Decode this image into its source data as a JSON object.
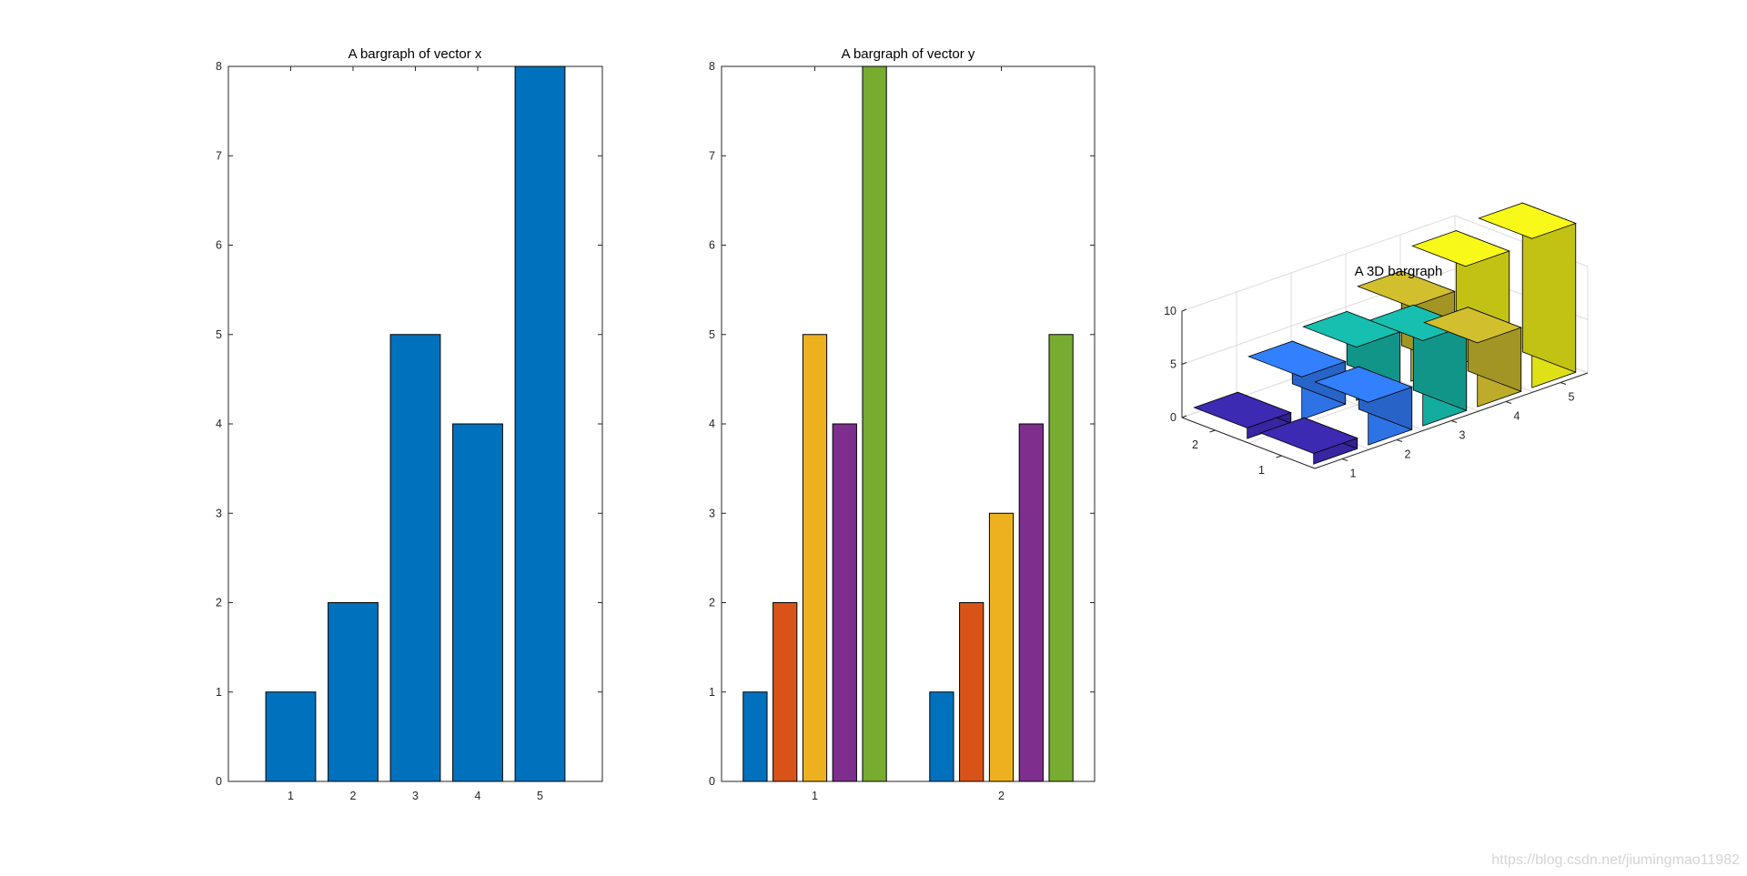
{
  "chart_data": [
    {
      "type": "bar",
      "title": "A bargraph of vector x",
      "categories": [
        "1",
        "2",
        "3",
        "4",
        "5"
      ],
      "values": [
        1,
        2,
        5,
        4,
        8
      ],
      "ylim": [
        0,
        8
      ],
      "yticks": [
        "0",
        "1",
        "2",
        "3",
        "4",
        "5",
        "6",
        "7",
        "8"
      ],
      "color": "#0072BD"
    },
    {
      "type": "bar",
      "title": "A bargraph of vector y",
      "categories": [
        "1",
        "2"
      ],
      "series": [
        {
          "values": [
            1,
            1
          ],
          "color": "#0072BD"
        },
        {
          "values": [
            2,
            2
          ],
          "color": "#D95319"
        },
        {
          "values": [
            5,
            3
          ],
          "color": "#EDB120"
        },
        {
          "values": [
            4,
            4
          ],
          "color": "#7E2F8E"
        },
        {
          "values": [
            8,
            5
          ],
          "color": "#77AC30"
        }
      ],
      "ylim": [
        0,
        8
      ],
      "yticks": [
        "0",
        "1",
        "2",
        "3",
        "4",
        "5",
        "6",
        "7",
        "8"
      ]
    },
    {
      "type": "bar3d",
      "title": "A 3D bargraph",
      "rows": [
        "1",
        "2"
      ],
      "cols": [
        "1",
        "2",
        "3",
        "4",
        "5"
      ],
      "values": [
        [
          1,
          4,
          8,
          6,
          14
        ],
        [
          1,
          4,
          5,
          7,
          9
        ]
      ],
      "zlim": [
        0,
        10
      ],
      "zticks": [
        "0",
        "5",
        "10"
      ],
      "colors": [
        "#3D2AB3",
        "#3380FF",
        "#16BFAF",
        "#D1BF2E",
        "#F9F919"
      ]
    }
  ],
  "watermark": "https://blog.csdn.net/jiumingmao11982"
}
